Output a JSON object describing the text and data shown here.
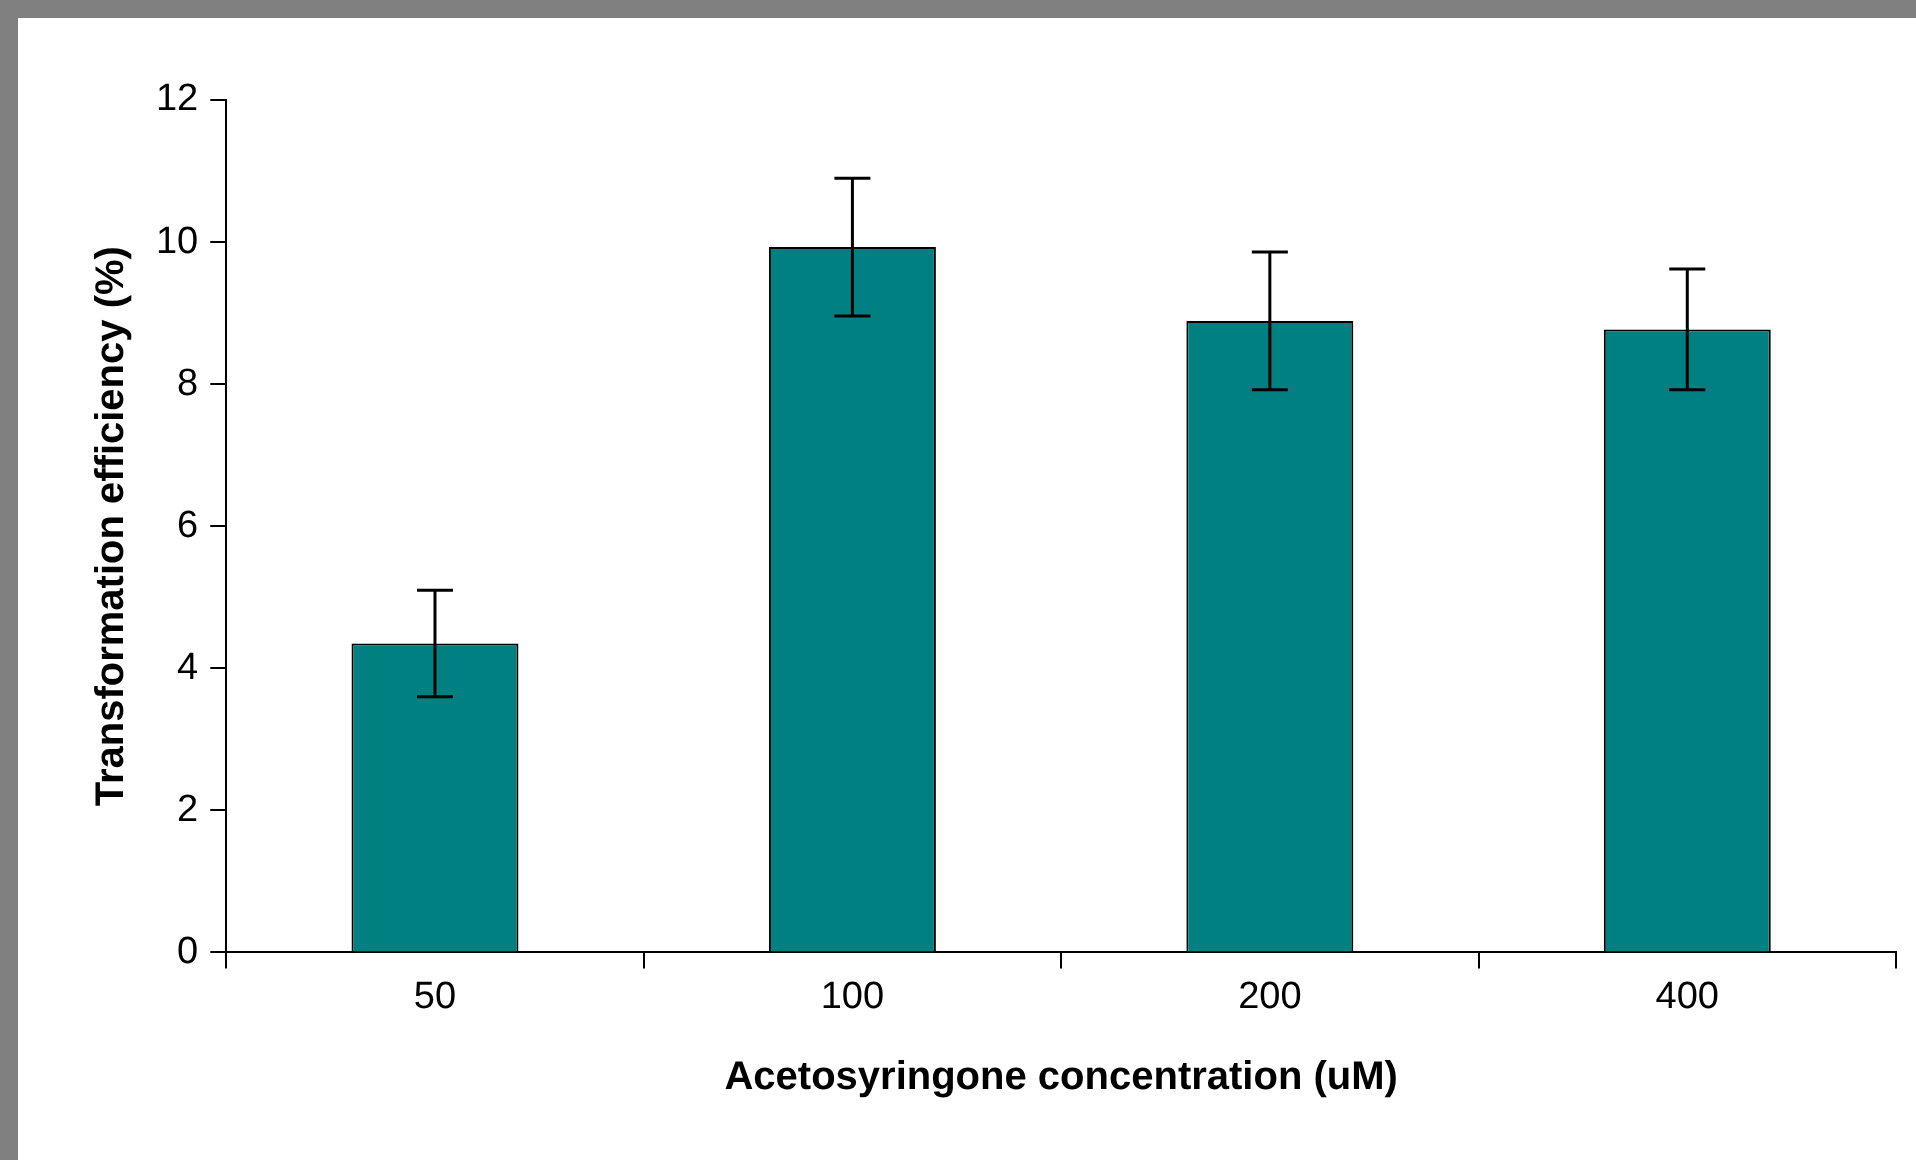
{
  "chart_data": {
    "type": "bar",
    "xlabel": "Acetosyringone concentration (uM)",
    "ylabel": "Transformation efficiency (%)",
    "categories": [
      "50",
      "100",
      "200",
      "400"
    ],
    "values": [
      4.35,
      9.93,
      8.89,
      8.77
    ],
    "errors": [
      0.75,
      0.97,
      0.97,
      0.85
    ],
    "color": "#008080",
    "ylim": [
      0,
      12
    ],
    "yticks": [
      0,
      2,
      4,
      6,
      8,
      10,
      12
    ],
    "grid": false,
    "legend": false
  }
}
